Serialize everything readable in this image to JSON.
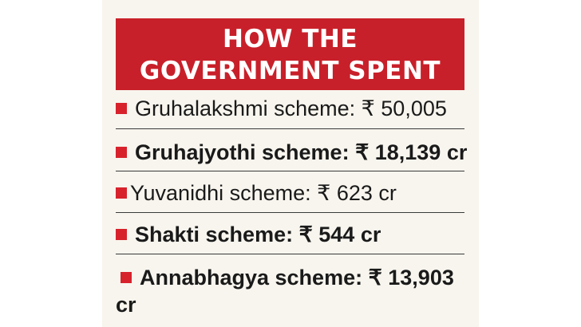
{
  "header": {
    "line1": "HOW THE",
    "line2": "GOVERNMENT SPENT"
  },
  "items": [
    {
      "label": "Gruhalakshmi scheme: ₹ 50,005"
    },
    {
      "label": "Gruhajyothi scheme: ₹ 18,139 cr"
    },
    {
      "label": "Yuvanidhi scheme: ₹ 623 cr"
    },
    {
      "label": "Shakti scheme: ₹ 544 cr"
    },
    {
      "label": "Annabhagya scheme: ₹ 13,903",
      "continuation": "cr"
    }
  ],
  "colors": {
    "header_bg": "#c8202a",
    "bullet": "#d7222c",
    "card_bg": "#f8f5ee"
  }
}
